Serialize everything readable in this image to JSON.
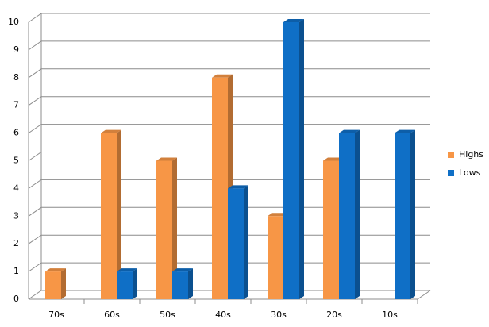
{
  "chart_data": {
    "type": "bar3d",
    "categories": [
      "70s",
      "60s",
      "50s",
      "40s",
      "30s",
      "20s",
      "10s"
    ],
    "series": [
      {
        "name": "Highs",
        "color": "#f79646",
        "values": [
          1,
          6,
          5,
          8,
          3,
          5,
          0
        ]
      },
      {
        "name": "Lows",
        "color": "#0f6fc6",
        "values": [
          0,
          1,
          1,
          4,
          10,
          6,
          6
        ]
      }
    ],
    "ylim": [
      0,
      10
    ],
    "yticks": [
      0,
      1,
      2,
      3,
      4,
      5,
      6,
      7,
      8,
      9,
      10
    ],
    "grid": true,
    "legend": "right"
  }
}
